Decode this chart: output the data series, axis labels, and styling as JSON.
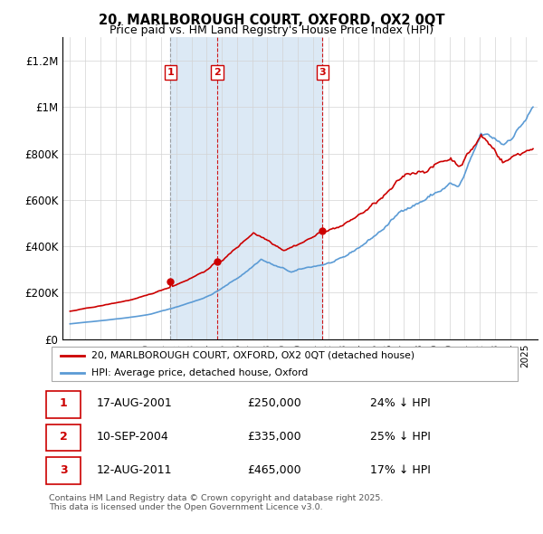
{
  "title": "20, MARLBOROUGH COURT, OXFORD, OX2 0QT",
  "subtitle": "Price paid vs. HM Land Registry's House Price Index (HPI)",
  "transactions": [
    {
      "label": "1",
      "date_str": "17-AUG-2001",
      "price": 250000,
      "pct": "24%",
      "x_year": 2001.62,
      "vline_style": "dashed_gray"
    },
    {
      "label": "2",
      "date_str": "10-SEP-2004",
      "price": 335000,
      "pct": "25%",
      "x_year": 2004.7,
      "vline_style": "dashed_red"
    },
    {
      "label": "3",
      "date_str": "12-AUG-2011",
      "price": 465000,
      "pct": "17%",
      "x_year": 2011.62,
      "vline_style": "dashed_red"
    }
  ],
  "legend_line1": "20, MARLBOROUGH COURT, OXFORD, OX2 0QT (detached house)",
  "legend_line2": "HPI: Average price, detached house, Oxford",
  "footer": "Contains HM Land Registry data © Crown copyright and database right 2025.\nThis data is licensed under the Open Government Licence v3.0.",
  "hpi_color": "#5b9bd5",
  "price_color": "#cc0000",
  "shade_color": "#dce9f5",
  "ylim": [
    0,
    1300000
  ],
  "xlim_start": 1994.5,
  "xlim_end": 2025.8,
  "yticks": [
    0,
    200000,
    400000,
    600000,
    800000,
    1000000,
    1200000
  ],
  "ytick_labels": [
    "£0",
    "£200K",
    "£400K",
    "£600K",
    "£800K",
    "£1M",
    "£1.2M"
  ],
  "xticks": [
    1995,
    1996,
    1997,
    1998,
    1999,
    2000,
    2001,
    2002,
    2003,
    2004,
    2005,
    2006,
    2007,
    2008,
    2009,
    2010,
    2011,
    2012,
    2013,
    2014,
    2015,
    2016,
    2017,
    2018,
    2019,
    2020,
    2021,
    2022,
    2023,
    2024,
    2025
  ]
}
